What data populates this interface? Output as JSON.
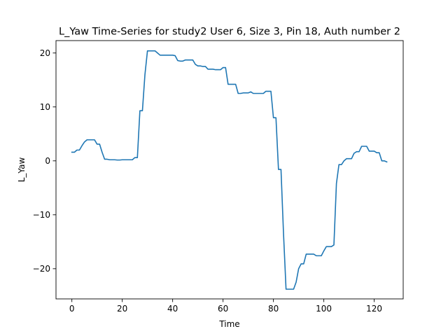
{
  "chart_data": {
    "type": "line",
    "title": "L_Yaw Time-Series for study2 User 6, Size 3, Pin 18, Auth number 2",
    "xlabel": "Time",
    "ylabel": "L_Yaw",
    "xlim": [
      -6.3,
      131.5
    ],
    "ylim": [
      -25.6,
      22.3
    ],
    "xticks": [
      0,
      20,
      40,
      60,
      80,
      100,
      120
    ],
    "yticks": [
      -20,
      -10,
      0,
      10,
      20
    ],
    "xtick_labels": [
      "0",
      "20",
      "40",
      "60",
      "80",
      "100",
      "120"
    ],
    "ytick_labels": [
      "−20",
      "−10",
      "0",
      "10",
      "20"
    ],
    "grid": false,
    "line_color": "#1f77b4",
    "series": [
      {
        "x": [
          0,
          1,
          2,
          3,
          4,
          5,
          6,
          7,
          8,
          9,
          10,
          11,
          12,
          13,
          14,
          15,
          16,
          17,
          18,
          19,
          20,
          21,
          22,
          23,
          24,
          25,
          26,
          27,
          28,
          29,
          30,
          31,
          32,
          33,
          34,
          35,
          36,
          37,
          38,
          39,
          40,
          41,
          42,
          43,
          44,
          45,
          46,
          47,
          48,
          49,
          50,
          51,
          52,
          53,
          54,
          55,
          56,
          57,
          58,
          59,
          60,
          61,
          62,
          63,
          64,
          65,
          66,
          67,
          68,
          69,
          70,
          71,
          72,
          73,
          74,
          75,
          76,
          77,
          78,
          79,
          80,
          81,
          82,
          83,
          84,
          85,
          86,
          87,
          88,
          89,
          90,
          91,
          92,
          93,
          94,
          95,
          96,
          97,
          98,
          99,
          100,
          101,
          102,
          103,
          104,
          105,
          106,
          107,
          108,
          109,
          110,
          111,
          112,
          113,
          114,
          115,
          116,
          117,
          118,
          119,
          120,
          121,
          122,
          123,
          124,
          125
        ],
        "y": [
          1.6,
          1.6,
          2.0,
          2.0,
          2.8,
          3.5,
          3.9,
          3.9,
          3.9,
          3.9,
          3.1,
          3.1,
          1.6,
          0.3,
          0.3,
          0.2,
          0.2,
          0.2,
          0.15,
          0.15,
          0.2,
          0.2,
          0.2,
          0.2,
          0.2,
          0.6,
          0.6,
          9.3,
          9.3,
          16.0,
          20.4,
          20.4,
          20.4,
          20.4,
          20.0,
          19.6,
          19.6,
          19.6,
          19.6,
          19.6,
          19.6,
          19.5,
          18.6,
          18.5,
          18.5,
          18.7,
          18.7,
          18.7,
          18.7,
          17.9,
          17.6,
          17.6,
          17.5,
          17.5,
          17.0,
          17.0,
          17.0,
          16.9,
          16.9,
          16.9,
          17.3,
          17.3,
          14.2,
          14.2,
          14.2,
          14.2,
          12.5,
          12.5,
          12.6,
          12.6,
          12.6,
          12.8,
          12.5,
          12.5,
          12.5,
          12.5,
          12.5,
          12.9,
          12.9,
          12.9,
          8.0,
          8.0,
          -1.6,
          -1.6,
          -13.5,
          -23.8,
          -23.8,
          -23.8,
          -23.8,
          -22.5,
          -20.0,
          -19.1,
          -19.1,
          -17.3,
          -17.3,
          -17.3,
          -17.3,
          -17.6,
          -17.6,
          -17.6,
          -16.7,
          -15.9,
          -15.9,
          -15.9,
          -15.6,
          -4.2,
          -0.7,
          -0.7,
          0.0,
          0.4,
          0.4,
          0.4,
          1.4,
          1.7,
          1.7,
          2.7,
          2.7,
          2.7,
          1.8,
          1.8,
          1.8,
          1.5,
          1.5,
          0.0,
          0.0,
          -0.2
        ]
      }
    ]
  }
}
